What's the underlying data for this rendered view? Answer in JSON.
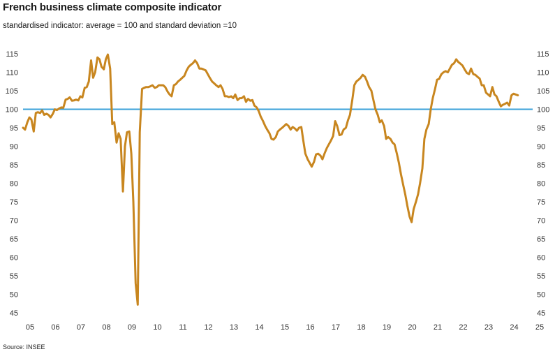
{
  "chart_data": {
    "type": "line",
    "title": "French business climate composite indicator",
    "subtitle": "standardised indicator: average = 100 and standard deviation =10",
    "source": "Source: INSEE",
    "xlabel": "",
    "ylabel": "",
    "ylim": [
      45,
      115
    ],
    "xlim": [
      2005,
      2025
    ],
    "y_ticks": [
      45,
      50,
      55,
      60,
      65,
      70,
      75,
      80,
      85,
      90,
      95,
      100,
      105,
      110,
      115
    ],
    "x_tick_labels": [
      "05",
      "06",
      "07",
      "08",
      "09",
      "10",
      "11",
      "12",
      "13",
      "14",
      "15",
      "16",
      "17",
      "18",
      "19",
      "20",
      "21",
      "22",
      "23",
      "24",
      "25"
    ],
    "grid": false,
    "reference_line": {
      "value": 100,
      "color": "#3aa0d8"
    },
    "series_color": "#c8861f",
    "series": [
      {
        "values": [
          [
            2005.0,
            95.0
          ],
          [
            2005.08,
            94.5
          ],
          [
            2005.17,
            96.5
          ],
          [
            2005.25,
            97.8
          ],
          [
            2005.33,
            97.2
          ],
          [
            2005.42,
            94.0
          ],
          [
            2005.5,
            99.0
          ],
          [
            2005.58,
            99.2
          ],
          [
            2005.67,
            99.0
          ],
          [
            2005.75,
            99.7
          ],
          [
            2005.83,
            98.5
          ],
          [
            2005.92,
            98.8
          ],
          [
            2006.0,
            98.5
          ],
          [
            2006.08,
            97.8
          ],
          [
            2006.17,
            98.8
          ],
          [
            2006.25,
            100.0
          ],
          [
            2006.33,
            99.8
          ],
          [
            2006.42,
            100.2
          ],
          [
            2006.5,
            100.5
          ],
          [
            2006.58,
            100.4
          ],
          [
            2006.67,
            102.6
          ],
          [
            2006.75,
            102.8
          ],
          [
            2006.83,
            103.2
          ],
          [
            2006.92,
            102.3
          ],
          [
            2007.0,
            102.4
          ],
          [
            2007.08,
            102.6
          ],
          [
            2007.17,
            102.4
          ],
          [
            2007.25,
            103.5
          ],
          [
            2007.33,
            103.2
          ],
          [
            2007.42,
            105.8
          ],
          [
            2007.5,
            106.0
          ],
          [
            2007.58,
            107.5
          ],
          [
            2007.67,
            113.2
          ],
          [
            2007.75,
            108.5
          ],
          [
            2007.83,
            110.0
          ],
          [
            2007.92,
            114.0
          ],
          [
            2008.0,
            113.5
          ],
          [
            2008.08,
            111.5
          ],
          [
            2008.17,
            110.8
          ],
          [
            2008.25,
            113.5
          ],
          [
            2008.33,
            114.8
          ],
          [
            2008.42,
            111.0
          ],
          [
            2008.5,
            96.0
          ],
          [
            2008.58,
            96.5
          ],
          [
            2008.67,
            91.0
          ],
          [
            2008.75,
            93.5
          ],
          [
            2008.83,
            92.0
          ],
          [
            2008.92,
            77.8
          ],
          [
            2009.0,
            90.0
          ],
          [
            2009.08,
            93.8
          ],
          [
            2009.17,
            94.0
          ],
          [
            2009.25,
            88.0
          ],
          [
            2009.33,
            75.0
          ],
          [
            2009.42,
            53.0
          ],
          [
            2009.5,
            47.2
          ],
          [
            2009.58,
            93.8
          ],
          [
            2009.67,
            105.5
          ],
          [
            2009.75,
            105.8
          ],
          [
            2009.83,
            106.0
          ],
          [
            2009.92,
            106.0
          ],
          [
            2010.0,
            106.2
          ],
          [
            2010.08,
            106.5
          ],
          [
            2010.17,
            105.8
          ],
          [
            2010.25,
            106.0
          ],
          [
            2010.33,
            106.5
          ],
          [
            2010.42,
            106.5
          ],
          [
            2010.5,
            106.5
          ],
          [
            2010.58,
            106.0
          ],
          [
            2010.67,
            104.8
          ],
          [
            2010.75,
            104.0
          ],
          [
            2010.83,
            103.5
          ],
          [
            2010.92,
            106.5
          ],
          [
            2011.0,
            106.8
          ],
          [
            2011.08,
            107.5
          ],
          [
            2011.17,
            108.0
          ],
          [
            2011.25,
            108.5
          ],
          [
            2011.33,
            109.0
          ],
          [
            2011.42,
            110.5
          ],
          [
            2011.5,
            111.5
          ],
          [
            2011.58,
            112.0
          ],
          [
            2011.67,
            112.5
          ],
          [
            2011.75,
            113.2
          ],
          [
            2011.83,
            112.5
          ],
          [
            2011.92,
            111.0
          ],
          [
            2012.0,
            111.0
          ],
          [
            2012.08,
            110.8
          ],
          [
            2012.17,
            110.5
          ],
          [
            2012.25,
            109.5
          ],
          [
            2012.33,
            108.5
          ],
          [
            2012.42,
            107.5
          ],
          [
            2012.5,
            107.0
          ],
          [
            2012.58,
            106.5
          ],
          [
            2012.67,
            106.0
          ],
          [
            2012.75,
            106.5
          ],
          [
            2012.83,
            105.5
          ],
          [
            2012.92,
            103.5
          ],
          [
            2013.0,
            103.5
          ],
          [
            2013.08,
            103.3
          ],
          [
            2013.17,
            103.5
          ],
          [
            2013.25,
            103.0
          ],
          [
            2013.33,
            104.0
          ],
          [
            2013.42,
            102.5
          ],
          [
            2013.5,
            103.0
          ],
          [
            2013.58,
            103.0
          ],
          [
            2013.67,
            103.5
          ],
          [
            2013.75,
            102.0
          ],
          [
            2013.83,
            102.8
          ],
          [
            2013.92,
            102.3
          ],
          [
            2014.0,
            102.5
          ],
          [
            2014.08,
            101.0
          ],
          [
            2014.17,
            100.5
          ],
          [
            2014.25,
            99.5
          ],
          [
            2014.33,
            98.0
          ],
          [
            2014.42,
            96.8
          ],
          [
            2014.5,
            95.5
          ],
          [
            2014.58,
            94.5
          ],
          [
            2014.67,
            93.5
          ],
          [
            2014.75,
            92.0
          ],
          [
            2014.83,
            91.8
          ],
          [
            2014.92,
            92.5
          ],
          [
            2015.0,
            94.0
          ],
          [
            2015.08,
            94.5
          ],
          [
            2015.17,
            95.0
          ],
          [
            2015.25,
            95.5
          ],
          [
            2015.33,
            96.0
          ],
          [
            2015.42,
            95.5
          ],
          [
            2015.5,
            94.5
          ],
          [
            2015.58,
            95.2
          ],
          [
            2015.67,
            94.8
          ],
          [
            2015.75,
            94.2
          ],
          [
            2015.83,
            95.0
          ],
          [
            2015.92,
            95.2
          ],
          [
            2016.0,
            91.5
          ],
          [
            2016.08,
            88.0
          ],
          [
            2016.17,
            86.5
          ],
          [
            2016.25,
            85.5
          ],
          [
            2016.33,
            84.5
          ],
          [
            2016.42,
            85.8
          ],
          [
            2016.5,
            87.8
          ],
          [
            2016.58,
            88.0
          ],
          [
            2016.67,
            87.5
          ],
          [
            2016.75,
            86.5
          ],
          [
            2016.83,
            88.0
          ],
          [
            2016.92,
            89.5
          ],
          [
            2017.0,
            90.5
          ],
          [
            2017.08,
            91.5
          ],
          [
            2017.17,
            92.8
          ],
          [
            2017.25,
            96.8
          ],
          [
            2017.33,
            95.5
          ],
          [
            2017.42,
            93.0
          ],
          [
            2017.5,
            93.2
          ],
          [
            2017.58,
            94.5
          ],
          [
            2017.67,
            95.0
          ],
          [
            2017.75,
            97.0
          ],
          [
            2017.83,
            98.5
          ],
          [
            2017.92,
            102.5
          ],
          [
            2018.0,
            106.5
          ],
          [
            2018.08,
            107.5
          ],
          [
            2018.17,
            108.0
          ],
          [
            2018.25,
            108.5
          ],
          [
            2018.33,
            109.3
          ],
          [
            2018.42,
            108.8
          ],
          [
            2018.5,
            107.5
          ],
          [
            2018.58,
            106.0
          ],
          [
            2018.67,
            105.0
          ],
          [
            2018.75,
            102.5
          ],
          [
            2018.83,
            100.0
          ],
          [
            2018.92,
            98.5
          ],
          [
            2019.0,
            96.5
          ],
          [
            2019.08,
            97.0
          ],
          [
            2019.17,
            95.5
          ],
          [
            2019.25,
            92.0
          ],
          [
            2019.33,
            92.5
          ],
          [
            2019.42,
            92.0
          ],
          [
            2019.5,
            91.0
          ],
          [
            2019.58,
            90.5
          ],
          [
            2019.67,
            88.0
          ],
          [
            2019.75,
            85.5
          ],
          [
            2019.83,
            82.5
          ],
          [
            2019.92,
            79.5
          ],
          [
            2020.0,
            77.0
          ],
          [
            2020.08,
            74.0
          ],
          [
            2020.17,
            71.0
          ],
          [
            2020.25,
            69.5
          ],
          [
            2020.33,
            73.0
          ],
          [
            2020.42,
            75.0
          ],
          [
            2020.5,
            77.0
          ],
          [
            2020.58,
            80.0
          ],
          [
            2020.67,
            84.0
          ],
          [
            2020.75,
            92.0
          ],
          [
            2020.83,
            94.5
          ],
          [
            2020.92,
            96.0
          ],
          [
            2021.0,
            100.0
          ],
          [
            2021.08,
            103.0
          ],
          [
            2021.17,
            105.5
          ],
          [
            2021.25,
            108.0
          ],
          [
            2021.33,
            108.2
          ],
          [
            2021.42,
            109.5
          ],
          [
            2021.5,
            110.0
          ],
          [
            2021.58,
            110.3
          ],
          [
            2021.67,
            110.0
          ],
          [
            2021.75,
            111.0
          ],
          [
            2021.83,
            112.0
          ],
          [
            2021.92,
            112.5
          ],
          [
            2022.0,
            113.5
          ],
          [
            2022.08,
            112.8
          ],
          [
            2022.17,
            112.3
          ],
          [
            2022.25,
            111.8
          ],
          [
            2022.33,
            110.8
          ],
          [
            2022.42,
            109.8
          ],
          [
            2022.5,
            109.5
          ],
          [
            2022.58,
            111.0
          ],
          [
            2022.67,
            109.5
          ],
          [
            2022.75,
            109.3
          ],
          [
            2022.83,
            108.8
          ],
          [
            2022.92,
            108.3
          ],
          [
            2023.0,
            106.5
          ],
          [
            2023.08,
            106.5
          ],
          [
            2023.17,
            104.5
          ],
          [
            2023.25,
            104.0
          ],
          [
            2023.33,
            103.5
          ],
          [
            2023.42,
            106.0
          ],
          [
            2023.5,
            104.0
          ],
          [
            2023.58,
            103.5
          ],
          [
            2023.67,
            102.0
          ],
          [
            2023.75,
            100.8
          ],
          [
            2023.83,
            101.2
          ],
          [
            2023.92,
            101.5
          ],
          [
            2024.0,
            101.8
          ],
          [
            2024.08,
            101.0
          ],
          [
            2024.17,
            103.8
          ],
          [
            2024.25,
            104.2
          ],
          [
            2024.33,
            104.0
          ],
          [
            2024.42,
            103.8
          ]
        ]
      }
    ]
  }
}
